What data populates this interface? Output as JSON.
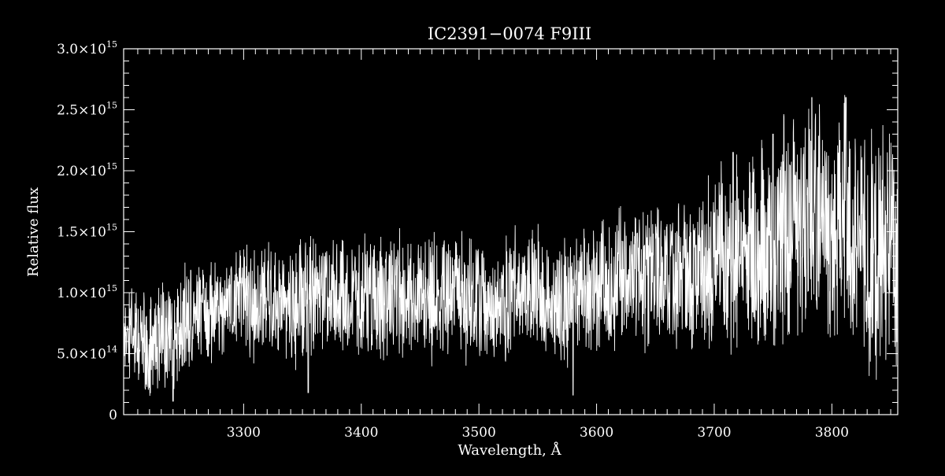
{
  "chart_data": {
    "type": "line",
    "title": "IC2391−0074   F9III",
    "xlabel": "Wavelength, Å",
    "ylabel": "Relative flux",
    "xlim": [
      3198,
      3856
    ],
    "ylim": [
      0,
      3000000000000000.0
    ],
    "grid": false,
    "legend": "none",
    "x_ticks": [
      {
        "value": 3300,
        "label": "3300"
      },
      {
        "value": 3400,
        "label": "3400"
      },
      {
        "value": 3500,
        "label": "3500"
      },
      {
        "value": 3600,
        "label": "3600"
      },
      {
        "value": 3700,
        "label": "3700"
      },
      {
        "value": 3800,
        "label": "3800"
      }
    ],
    "y_ticks": [
      {
        "value": 0,
        "mantissa": "0",
        "exponent": ""
      },
      {
        "value": 500000000000000.0,
        "mantissa": "5.0×10",
        "exponent": "14"
      },
      {
        "value": 1000000000000000.0,
        "mantissa": "1.0×10",
        "exponent": "15"
      },
      {
        "value": 1500000000000000.0,
        "mantissa": "1.5×10",
        "exponent": "15"
      },
      {
        "value": 2000000000000000.0,
        "mantissa": "2.0×10",
        "exponent": "15"
      },
      {
        "value": 2500000000000000.0,
        "mantissa": "2.5×10",
        "exponent": "15"
      },
      {
        "value": 3000000000000000.0,
        "mantissa": "3.0×10",
        "exponent": "15"
      }
    ],
    "series": [
      {
        "color": "#ffffff",
        "x": [
          3198,
          3210,
          3220,
          3230,
          3240,
          3250,
          3260,
          3270,
          3280,
          3290,
          3300,
          3310,
          3320,
          3330,
          3340,
          3350,
          3360,
          3370,
          3380,
          3390,
          3400,
          3410,
          3420,
          3430,
          3440,
          3450,
          3460,
          3470,
          3480,
          3490,
          3500,
          3510,
          3520,
          3530,
          3540,
          3550,
          3560,
          3570,
          3580,
          3590,
          3600,
          3610,
          3620,
          3630,
          3640,
          3650,
          3660,
          3670,
          3680,
          3690,
          3700,
          3710,
          3720,
          3730,
          3740,
          3750,
          3760,
          3770,
          3780,
          3790,
          3800,
          3810,
          3820,
          3830,
          3840,
          3850,
          3856
        ],
        "y": [
          650000000000000.0,
          600000000000000.0,
          550000000000000.0,
          650000000000000.0,
          650000000000000.0,
          750000000000000.0,
          850000000000000.0,
          850000000000000.0,
          850000000000000.0,
          900000000000000.0,
          950000000000000.0,
          900000000000000.0,
          950000000000000.0,
          950000000000000.0,
          900000000000000.0,
          900000000000000.0,
          950000000000000.0,
          950000000000000.0,
          950000000000000.0,
          950000000000000.0,
          950000000000000.0,
          950000000000000.0,
          950000000000000.0,
          1000000000000000.0,
          950000000000000.0,
          950000000000000.0,
          950000000000000.0,
          950000000000000.0,
          1000000000000000.0,
          950000000000000.0,
          1000000000000000.0,
          950000000000000.0,
          950000000000000.0,
          1000000000000000.0,
          1000000000000000.0,
          1000000000000000.0,
          1000000000000000.0,
          950000000000000.0,
          950000000000000.0,
          1000000000000000.0,
          1050000000000000.0,
          1050000000000000.0,
          1100000000000000.0,
          1100000000000000.0,
          1100000000000000.0,
          1150000000000000.0,
          1150000000000000.0,
          1150000000000000.0,
          1150000000000000.0,
          1200000000000000.0,
          1250000000000000.0,
          1300000000000000.0,
          1350000000000000.0,
          1400000000000000.0,
          1350000000000000.0,
          1450000000000000.0,
          1500000000000000.0,
          1500000000000000.0,
          1700000000000000.0,
          1600000000000000.0,
          1450000000000000.0,
          1700000000000000.0,
          1450000000000000.0,
          1300000000000000.0,
          1300000000000000.0,
          1350000000000000.0,
          1300000000000000.0
        ],
        "noise": [
          400000000000000.0,
          450000000000000.0,
          450000000000000.0,
          450000000000000.0,
          450000000000000.0,
          450000000000000.0,
          400000000000000.0,
          400000000000000.0,
          400000000000000.0,
          400000000000000.0,
          450000000000000.0,
          450000000000000.0,
          450000000000000.0,
          450000000000000.0,
          500000000000000.0,
          500000000000000.0,
          500000000000000.0,
          500000000000000.0,
          500000000000000.0,
          500000000000000.0,
          500000000000000.0,
          500000000000000.0,
          500000000000000.0,
          500000000000000.0,
          500000000000000.0,
          500000000000000.0,
          500000000000000.0,
          500000000000000.0,
          500000000000000.0,
          500000000000000.0,
          500000000000000.0,
          500000000000000.0,
          500000000000000.0,
          500000000000000.0,
          500000000000000.0,
          500000000000000.0,
          500000000000000.0,
          550000000000000.0,
          550000000000000.0,
          550000000000000.0,
          550000000000000.0,
          550000000000000.0,
          550000000000000.0,
          550000000000000.0,
          550000000000000.0,
          550000000000000.0,
          550000000000000.0,
          600000000000000.0,
          600000000000000.0,
          650000000000000.0,
          700000000000000.0,
          750000000000000.0,
          800000000000000.0,
          850000000000000.0,
          850000000000000.0,
          850000000000000.0,
          900000000000000.0,
          900000000000000.0,
          950000000000000.0,
          950000000000000.0,
          950000000000000.0,
          950000000000000.0,
          950000000000000.0,
          950000000000000.0,
          950000000000000.0,
          900000000000000.0,
          900000000000000.0
        ],
        "peaks": [
          {
            "x": 3783,
            "y": 2600000000000000.0
          },
          {
            "x": 3812,
            "y": 2600000000000000.0
          },
          {
            "x": 3750,
            "y": 2300000000000000.0
          },
          {
            "x": 3716,
            "y": 2150000000000000.0
          },
          {
            "x": 3240,
            "y": 110000000000000.0
          },
          {
            "x": 3580,
            "y": 160000000000000.0
          },
          {
            "x": 3355,
            "y": 180000000000000.0
          }
        ]
      }
    ]
  }
}
